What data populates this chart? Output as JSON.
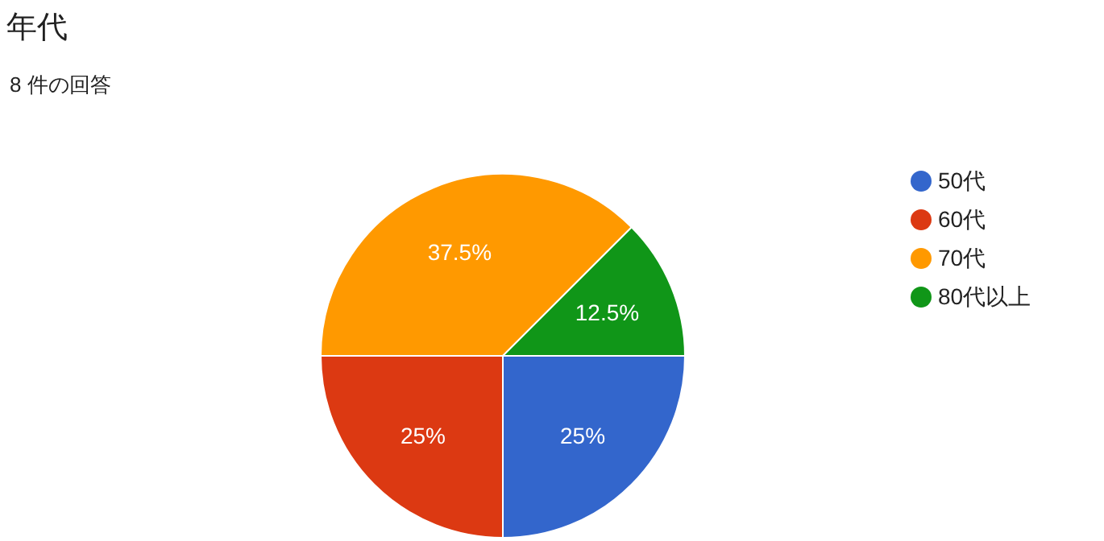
{
  "chart_data": {
    "type": "pie",
    "title": "年代",
    "subtitle": "8 件の回答",
    "categories": [
      "50代",
      "60代",
      "70代",
      "80代以上"
    ],
    "values": [
      25,
      25,
      37.5,
      12.5
    ],
    "colors": [
      "#3366cc",
      "#dc3912",
      "#ff9900",
      "#109618"
    ],
    "value_labels": [
      "25%",
      "25%",
      "37.5%",
      "12.5%"
    ],
    "legend": "right"
  }
}
